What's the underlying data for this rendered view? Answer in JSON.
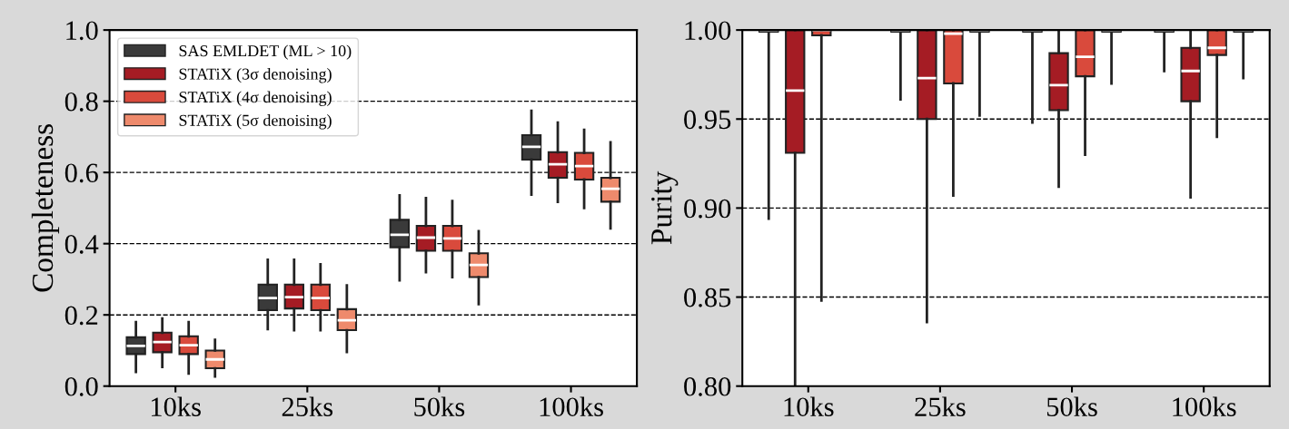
{
  "chart_data": [
    {
      "type": "box",
      "ylabel": "Completeness",
      "categories": [
        "10ks",
        "25ks",
        "50ks",
        "100ks"
      ],
      "ylim": [
        0.0,
        1.0
      ],
      "yticks": [
        {
          "value": 0.0,
          "label": "0.0"
        },
        {
          "value": 0.2,
          "label": "0.2"
        },
        {
          "value": 0.4,
          "label": "0.4"
        },
        {
          "value": 0.6,
          "label": "0.6"
        },
        {
          "value": 0.8,
          "label": "0.8"
        },
        {
          "value": 1.0,
          "label": "1.0"
        }
      ],
      "grid": "y",
      "legend": "top left",
      "series": [
        {
          "name": "SAS EMLDET (ML > 10)",
          "color": "#3a3a3a",
          "boxes": [
            {
              "low": 0.04,
              "q1": 0.09,
              "median": 0.113,
              "q3": 0.137,
              "high": 0.18
            },
            {
              "low": 0.16,
              "q1": 0.213,
              "median": 0.247,
              "q3": 0.285,
              "high": 0.355
            },
            {
              "low": 0.297,
              "q1": 0.39,
              "median": 0.425,
              "q3": 0.467,
              "high": 0.536
            },
            {
              "low": 0.538,
              "q1": 0.636,
              "median": 0.672,
              "q3": 0.705,
              "high": 0.773
            }
          ]
        },
        {
          "name": "STATiX (3σ denoising)",
          "color": "#a51c24",
          "boxes": [
            {
              "low": 0.054,
              "q1": 0.095,
              "median": 0.124,
              "q3": 0.15,
              "high": 0.19
            },
            {
              "low": 0.157,
              "q1": 0.218,
              "median": 0.25,
              "q3": 0.285,
              "high": 0.355
            },
            {
              "low": 0.32,
              "q1": 0.38,
              "median": 0.417,
              "q3": 0.45,
              "high": 0.528
            },
            {
              "low": 0.517,
              "q1": 0.585,
              "median": 0.623,
              "q3": 0.657,
              "high": 0.74
            }
          ]
        },
        {
          "name": "STATiX (4σ denoising)",
          "color": "#d94a3c",
          "boxes": [
            {
              "low": 0.035,
              "q1": 0.09,
              "median": 0.115,
              "q3": 0.14,
              "high": 0.18
            },
            {
              "low": 0.157,
              "q1": 0.213,
              "median": 0.247,
              "q3": 0.285,
              "high": 0.342
            },
            {
              "low": 0.306,
              "q1": 0.38,
              "median": 0.415,
              "q3": 0.45,
              "high": 0.52
            },
            {
              "low": 0.5,
              "q1": 0.58,
              "median": 0.618,
              "q3": 0.655,
              "high": 0.72
            }
          ]
        },
        {
          "name": "STATiX (5σ denoising)",
          "color": "#ee8a6c",
          "boxes": [
            {
              "low": 0.027,
              "q1": 0.05,
              "median": 0.075,
              "q3": 0.1,
              "high": 0.13
            },
            {
              "low": 0.096,
              "q1": 0.157,
              "median": 0.185,
              "q3": 0.216,
              "high": 0.283
            },
            {
              "low": 0.23,
              "q1": 0.306,
              "median": 0.34,
              "q3": 0.373,
              "high": 0.435
            },
            {
              "low": 0.443,
              "q1": 0.518,
              "median": 0.554,
              "q3": 0.585,
              "high": 0.685
            }
          ]
        }
      ]
    },
    {
      "type": "box",
      "ylabel": "Purity",
      "categories": [
        "10ks",
        "25ks",
        "50ks",
        "100ks"
      ],
      "ylim": [
        0.8,
        1.0
      ],
      "yticks": [
        {
          "value": 0.8,
          "label": "0.80"
        },
        {
          "value": 0.85,
          "label": "0.85"
        },
        {
          "value": 0.9,
          "label": "0.90"
        },
        {
          "value": 0.95,
          "label": "0.95"
        },
        {
          "value": 1.0,
          "label": "1.00"
        }
      ],
      "grid": "y",
      "series": [
        {
          "color": "#3a3a3a",
          "boxes": [
            {
              "low": 0.894,
              "q1": 0.999,
              "median": 1.0,
              "q3": 1.0,
              "high": 1.0
            },
            {
              "low": 0.961,
              "q1": 0.999,
              "median": 1.0,
              "q3": 1.0,
              "high": 1.0
            },
            {
              "low": 0.948,
              "q1": 0.999,
              "median": 1.0,
              "q3": 1.0,
              "high": 1.0
            },
            {
              "low": 0.977,
              "q1": 0.999,
              "median": 1.0,
              "q3": 1.0,
              "high": 1.0
            }
          ]
        },
        {
          "color": "#a51c24",
          "boxes": [
            {
              "low": 0.8,
              "q1": 0.931,
              "median": 0.966,
              "q3": 1.0,
              "high": 1.0
            },
            {
              "low": 0.836,
              "q1": 0.95,
              "median": 0.973,
              "q3": 1.0,
              "high": 1.0
            },
            {
              "low": 0.912,
              "q1": 0.955,
              "median": 0.969,
              "q3": 0.987,
              "high": 1.0
            },
            {
              "low": 0.906,
              "q1": 0.96,
              "median": 0.977,
              "q3": 0.99,
              "high": 1.0
            }
          ]
        },
        {
          "color": "#d94a3c",
          "boxes": [
            {
              "low": 0.848,
              "q1": 0.997,
              "median": 1.0,
              "q3": 1.0,
              "high": 1.0
            },
            {
              "low": 0.907,
              "q1": 0.97,
              "median": 0.998,
              "q3": 1.0,
              "high": 1.0
            },
            {
              "low": 0.93,
              "q1": 0.974,
              "median": 0.985,
              "q3": 1.0,
              "high": 1.0
            },
            {
              "low": 0.94,
              "q1": 0.986,
              "median": 0.99,
              "q3": 1.0,
              "high": 1.0
            }
          ]
        },
        {
          "color": "#ee8a6c",
          "boxes": [
            null,
            {
              "low": 0.952,
              "q1": 0.999,
              "median": 1.0,
              "q3": 1.0,
              "high": 1.0
            },
            {
              "low": 0.97,
              "q1": 0.999,
              "median": 1.0,
              "q3": 1.0,
              "high": 1.0
            },
            {
              "low": 0.973,
              "q1": 0.999,
              "median": 1.0,
              "q3": 1.0,
              "high": 1.0
            }
          ]
        }
      ]
    }
  ]
}
